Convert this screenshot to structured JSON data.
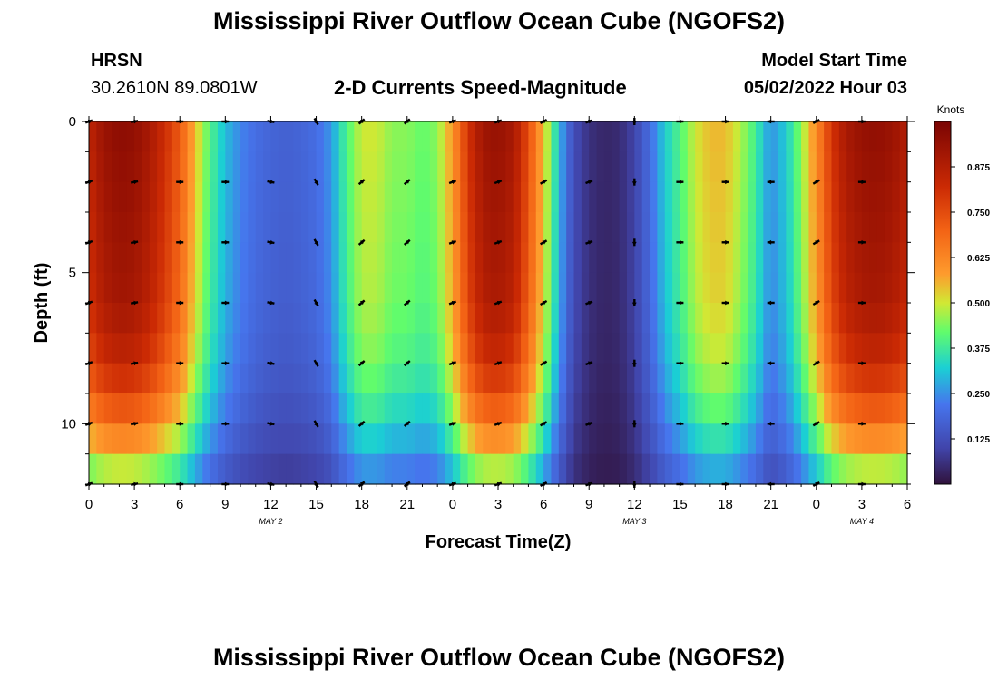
{
  "page": {
    "title_top": "Mississippi River Outflow Ocean Cube (NGOFS2)",
    "title_bottom": "Mississippi River Outflow Ocean Cube (NGOFS2)"
  },
  "header": {
    "station": "HRSN",
    "coords": "30.2610N  89.0801W",
    "subtitle": "2-D Currents Speed-Magnitude",
    "model_label": "Model Start Time",
    "model_time": "05/02/2022 Hour 03"
  },
  "chart_data": {
    "type": "heatmap",
    "title": "2-D Currents Speed-Magnitude",
    "xlabel": "Forecast Time(Z)",
    "ylabel": "Depth (ft)",
    "x_hours": [
      0,
      54
    ],
    "ylim": [
      0,
      12
    ],
    "x_tick_labels": [
      "0",
      "3",
      "6",
      "9",
      "12",
      "15",
      "18",
      "21",
      "0",
      "3",
      "6",
      "9",
      "12",
      "15",
      "18",
      "21",
      "0",
      "3",
      "6"
    ],
    "y_tick_labels": [
      "0",
      "5",
      "10"
    ],
    "y_tick_values": [
      0,
      5,
      10
    ],
    "date_labels": [
      {
        "text": "MAY 2",
        "hour": 12
      },
      {
        "text": "MAY 3",
        "hour": 36
      },
      {
        "text": "MAY 4",
        "hour": 51
      }
    ],
    "colorbar": {
      "unit": "Knots",
      "min": 0,
      "max": 1.0,
      "ticks": [
        "0.125",
        "0.250",
        "0.375",
        "0.500",
        "0.625",
        "0.750",
        "0.875"
      ],
      "tick_values": [
        0.125,
        0.25,
        0.375,
        0.5,
        0.625,
        0.75,
        0.875
      ]
    },
    "speed_profile_hours": [
      0,
      1,
      2,
      3,
      4,
      5,
      6,
      7,
      8,
      9,
      10,
      11,
      12,
      13,
      14,
      15,
      16,
      17,
      18,
      19,
      20,
      21,
      22,
      23,
      24,
      25,
      26,
      27,
      28,
      29,
      30,
      31,
      32,
      33,
      34,
      35,
      36,
      37,
      38,
      39,
      40,
      41,
      42,
      43,
      44,
      45,
      46,
      47,
      48,
      49,
      50,
      51,
      52,
      53,
      54
    ],
    "surface_speed": [
      0.85,
      0.93,
      0.96,
      0.95,
      0.9,
      0.82,
      0.72,
      0.55,
      0.4,
      0.3,
      0.24,
      0.2,
      0.18,
      0.17,
      0.18,
      0.2,
      0.26,
      0.4,
      0.5,
      0.5,
      0.45,
      0.45,
      0.42,
      0.45,
      0.6,
      0.8,
      0.92,
      0.94,
      0.9,
      0.75,
      0.55,
      0.3,
      0.12,
      0.06,
      0.04,
      0.05,
      0.1,
      0.2,
      0.32,
      0.4,
      0.5,
      0.55,
      0.55,
      0.48,
      0.38,
      0.25,
      0.32,
      0.45,
      0.62,
      0.8,
      0.9,
      0.94,
      0.95,
      0.93,
      0.88
    ],
    "depth_profile": [
      {
        "depth": 0,
        "factor": 1.0
      },
      {
        "depth": 6,
        "factor": 0.95
      },
      {
        "depth": 8,
        "factor": 0.88
      },
      {
        "depth": 10,
        "factor": 0.72
      },
      {
        "depth": 11,
        "factor": 0.58
      },
      {
        "depth": 12,
        "factor": 0.45
      }
    ],
    "vector_depths": [
      0,
      2,
      4,
      6,
      8,
      10,
      12
    ],
    "vector_hours": [
      0,
      3,
      6,
      9,
      12,
      15,
      18,
      21,
      24,
      27,
      30,
      33,
      36,
      39,
      42,
      45,
      48,
      51
    ],
    "vector_directions_deg": [
      20,
      10,
      0,
      0,
      -10,
      -60,
      40,
      40,
      20,
      20,
      30,
      20,
      -90,
      0,
      0,
      180,
      30,
      0
    ]
  }
}
